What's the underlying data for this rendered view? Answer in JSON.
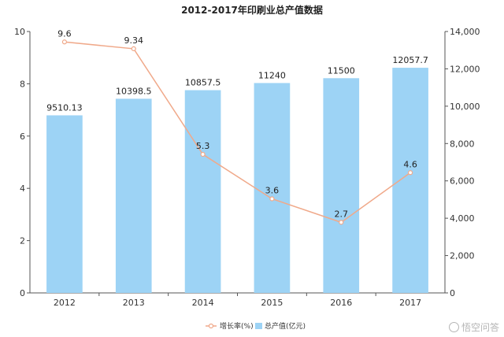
{
  "chart_data": {
    "type": "bar+line",
    "title": "2012-2017年印刷业总产值数据",
    "categories": [
      "2012",
      "2013",
      "2014",
      "2015",
      "2016",
      "2017"
    ],
    "series": [
      {
        "name": "总产值(亿元)",
        "type": "bar",
        "axis": "right",
        "values": [
          9510.13,
          10398.5,
          10857.5,
          11240,
          11500,
          12057.7
        ],
        "labels": [
          "9510.13",
          "10398.5",
          "10857.5",
          "11240",
          "11500",
          "12057.7"
        ],
        "color": "#9dd3f5"
      },
      {
        "name": "增长率(%)",
        "type": "line",
        "axis": "left",
        "values": [
          9.6,
          9.34,
          5.3,
          3.6,
          2.7,
          4.6
        ],
        "labels": [
          "9.6",
          "9.34",
          "5.3",
          "3.6",
          "2.7",
          "4.6"
        ],
        "color": "#f0a98a"
      }
    ],
    "y_left": {
      "min": 0,
      "max": 10,
      "ticks": [
        "0",
        "2",
        "4",
        "6",
        "8",
        "10"
      ]
    },
    "y_right": {
      "min": 0,
      "max": 14000,
      "ticks": [
        "0",
        "2,000",
        "4,000",
        "6,000",
        "8,000",
        "10,000",
        "12,000",
        "14,000"
      ]
    },
    "grid": false,
    "legend": "bottom-center"
  },
  "watermark": "悟空问答"
}
